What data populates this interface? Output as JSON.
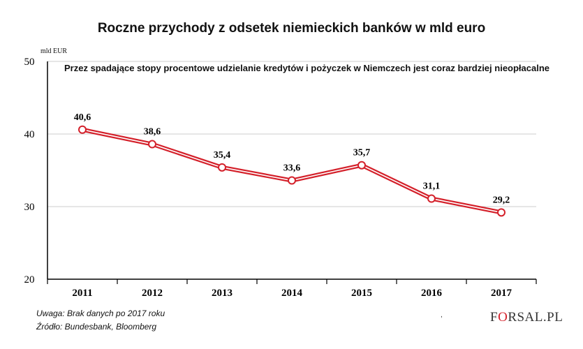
{
  "title": "Roczne przychody z odsetek niemieckich banków w mld euro",
  "unit": "mld EUR",
  "subtitle": "Przez spadające stopy procentowe udzielanie kredytów i pożyczek w Niemczech jest coraz bardziej nieopłacalne",
  "footnote": {
    "note": "Uwaga: Brak danych po 2017 roku",
    "source": "Źródło: Bundesbank, Bloomberg"
  },
  "brand": {
    "prefix": "F",
    "mark": "O",
    "suffix": "RSAL.PL",
    "stray": ","
  },
  "colors": {
    "line": "#d4202a",
    "grid": "#cccccc",
    "axis": "#000000"
  },
  "chart_data": {
    "type": "line",
    "x": [
      "2011",
      "2012",
      "2013",
      "2014",
      "2015",
      "2016",
      "2017"
    ],
    "series": [
      {
        "values": [
          40.6,
          38.6,
          35.4,
          33.6,
          35.7,
          31.1,
          29.2
        ],
        "labels": [
          "40,6",
          "38,6",
          "35,4",
          "33,6",
          "35,7",
          "31,1",
          "29,2"
        ]
      }
    ],
    "yticks": [
      20,
      30,
      40,
      50
    ],
    "ylim": [
      20,
      50
    ],
    "grid": true,
    "ylabel": "mld EUR"
  }
}
